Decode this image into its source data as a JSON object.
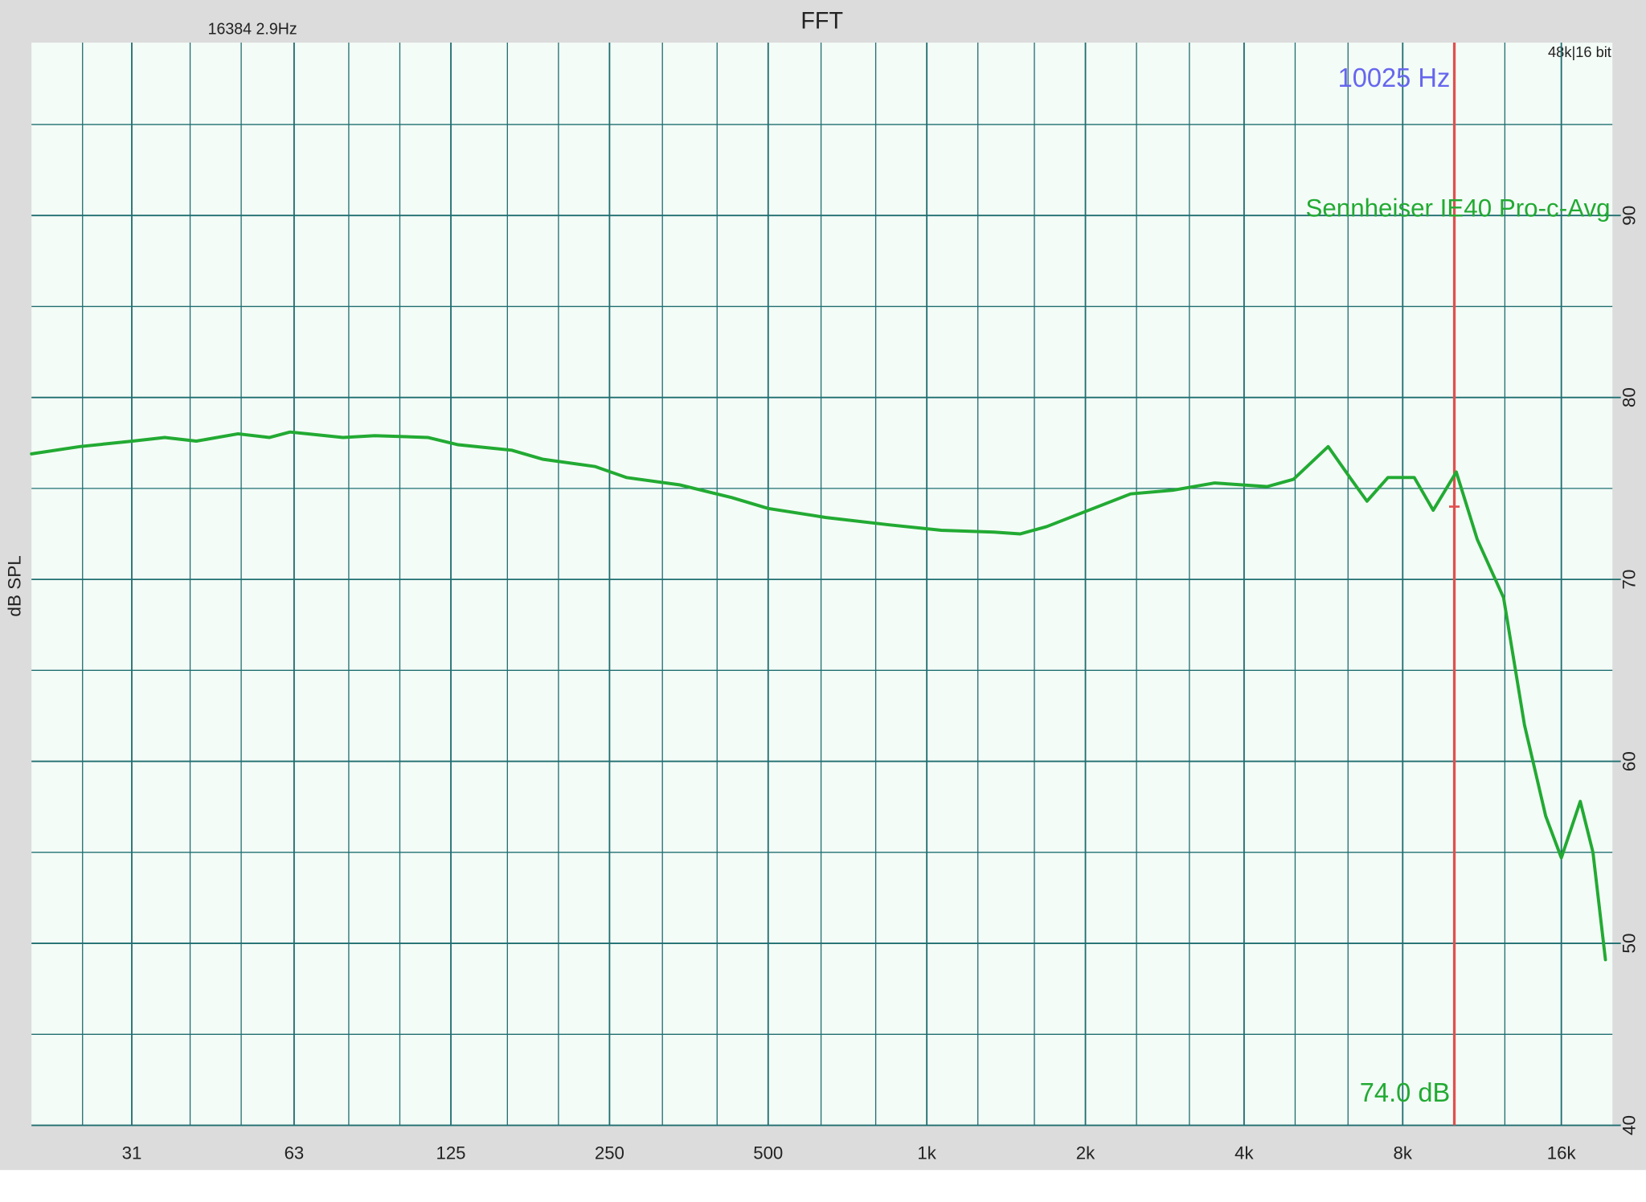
{
  "chart_data": {
    "type": "line",
    "title": "FFT",
    "fft_info": "16384  2.9Hz",
    "format_info": "48k|16 bit",
    "y_label": "dB SPL",
    "log_x": true,
    "grid": true,
    "xlim": [
      20,
      20000
    ],
    "ylim": [
      40,
      99.5
    ],
    "xticks": [
      31,
      63,
      125,
      250,
      500,
      {
        "value": 1000,
        "label": "1k"
      },
      {
        "value": 2000,
        "label": "2k"
      },
      {
        "value": 4000,
        "label": "4k"
      },
      {
        "value": 8000,
        "label": "8k"
      },
      {
        "value": 16000,
        "label": "16k"
      }
    ],
    "x_minor_ticks": [
      25,
      40,
      50,
      80,
      100,
      160,
      200,
      315,
      400,
      630,
      800,
      1250,
      1600,
      2500,
      3150,
      5000,
      6300,
      10000,
      12500
    ],
    "yticks": [
      40,
      50,
      60,
      70,
      80,
      90
    ],
    "y_minor_ticks": [
      45,
      55,
      65,
      75,
      85,
      95
    ],
    "cursor": {
      "x": 10025,
      "label": "10025 Hz",
      "color": "#e05050",
      "label_color": "#6666ee"
    },
    "readout": {
      "value": 74.0,
      "label": "74.0 dB"
    },
    "x": [
      20,
      24.7,
      31.1,
      35.8,
      41.1,
      49.3,
      56.6,
      61.9,
      78,
      89.6,
      113,
      129,
      163,
      187,
      235,
      269,
      339,
      426,
      500,
      644,
      848,
      1066,
      1341,
      1504,
      1688,
      2028,
      2437,
      2928,
      3518,
      4424,
      4963,
      5776,
      6388,
      6844,
      7500,
      8414,
      9140,
      10110,
      11080,
      12430,
      13620,
      14940,
      16000,
      17380,
      18370,
      19400
    ],
    "series": [
      {
        "name": "Sennheiser IE40 Pro-c-Avg",
        "color": "#22aa33",
        "values": [
          76.9,
          77.3,
          77.6,
          77.8,
          77.6,
          78.0,
          77.8,
          78.1,
          77.8,
          77.9,
          77.8,
          77.4,
          77.1,
          76.6,
          76.2,
          75.6,
          75.2,
          74.5,
          73.9,
          73.4,
          73.0,
          72.7,
          72.6,
          72.5,
          72.9,
          73.8,
          74.7,
          74.9,
          75.3,
          75.1,
          75.5,
          77.3,
          75.5,
          74.3,
          75.6,
          75.6,
          73.8,
          75.9,
          72.2,
          69.0,
          62.0,
          57.0,
          54.7,
          57.8,
          55.0,
          49.1
        ]
      }
    ]
  }
}
